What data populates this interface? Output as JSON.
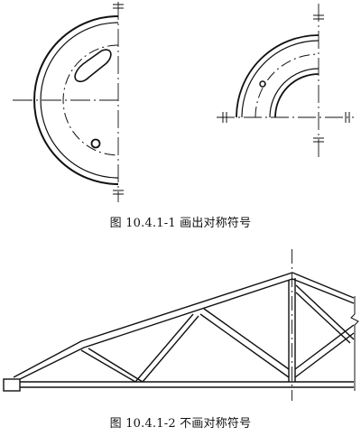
{
  "figures": [
    {
      "caption": "图 10.4.1-1   画出对称符号"
    },
    {
      "caption": "图 10.4.1-2   不画对称符号"
    }
  ]
}
